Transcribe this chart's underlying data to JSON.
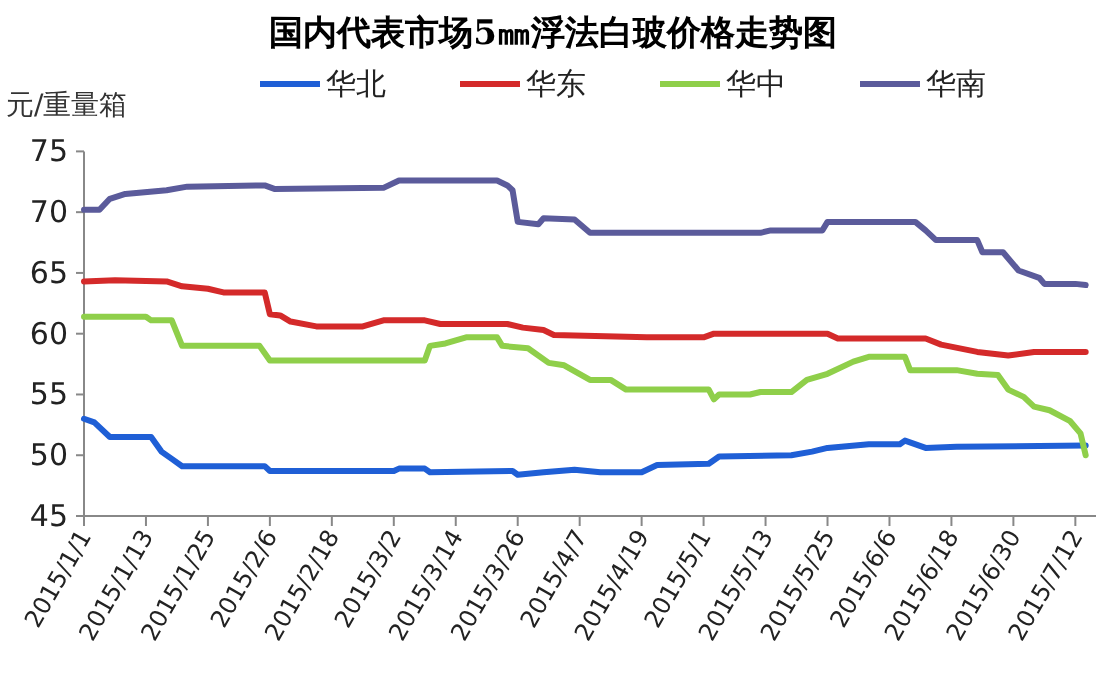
{
  "chart_data": {
    "type": "line",
    "title": "国内代表市场5㎜浮法白玻价格走势图",
    "ylabel": "元/重量箱",
    "legend": "top",
    "grid": false,
    "xlim": [
      "2015-01-01",
      "2015-07-16"
    ],
    "xticks": [
      {
        "value": "2015-01-01",
        "label": "2015/1/1"
      },
      {
        "value": "2015-01-13",
        "label": "2015/1/13"
      },
      {
        "value": "2015-01-25",
        "label": "2015/1/25"
      },
      {
        "value": "2015-02-06",
        "label": "2015/2/6"
      },
      {
        "value": "2015-02-18",
        "label": "2015/2/18"
      },
      {
        "value": "2015-03-02",
        "label": "2015/3/2"
      },
      {
        "value": "2015-03-14",
        "label": "2015/3/14"
      },
      {
        "value": "2015-03-26",
        "label": "2015/3/26"
      },
      {
        "value": "2015-04-07",
        "label": "2015/4/7"
      },
      {
        "value": "2015-04-19",
        "label": "2015/4/19"
      },
      {
        "value": "2015-05-01",
        "label": "2015/5/1"
      },
      {
        "value": "2015-05-13",
        "label": "2015/5/13"
      },
      {
        "value": "2015-05-25",
        "label": "2015/5/25"
      },
      {
        "value": "2015-06-06",
        "label": "2015/6/6"
      },
      {
        "value": "2015-06-18",
        "label": "2015/6/18"
      },
      {
        "value": "2015-06-30",
        "label": "2015/6/30"
      },
      {
        "value": "2015-07-12",
        "label": "2015/7/12"
      }
    ],
    "ylim": [
      45,
      75
    ],
    "yticks": [
      45,
      50,
      55,
      60,
      65,
      70,
      75
    ],
    "series": [
      {
        "name": "华北",
        "color": "#1f5fd6",
        "x": [
          "2015-01-01",
          "2015-01-03",
          "2015-01-06",
          "2015-01-14",
          "2015-01-16",
          "2015-01-18",
          "2015-01-20",
          "2015-02-05",
          "2015-02-06",
          "2015-03-02",
          "2015-03-03",
          "2015-03-08",
          "2015-03-09",
          "2015-03-25",
          "2015-03-26",
          "2015-03-31",
          "2015-04-06",
          "2015-04-11",
          "2015-04-19",
          "2015-04-22",
          "2015-05-02",
          "2015-05-04",
          "2015-05-18",
          "2015-05-22",
          "2015-05-25",
          "2015-06-02",
          "2015-06-08",
          "2015-06-09",
          "2015-06-13",
          "2015-06-19",
          "2015-07-14"
        ],
        "values": [
          53.0,
          52.7,
          51.5,
          51.5,
          50.3,
          49.7,
          49.1,
          49.1,
          48.7,
          48.7,
          48.9,
          48.9,
          48.6,
          48.7,
          48.4,
          48.6,
          48.8,
          48.6,
          48.6,
          49.2,
          49.3,
          49.9,
          50.0,
          50.3,
          50.6,
          50.9,
          50.9,
          51.2,
          50.6,
          50.7,
          50.8
        ]
      },
      {
        "name": "华东",
        "color": "#d42a2a",
        "x": [
          "2015-01-01",
          "2015-01-07",
          "2015-01-17",
          "2015-01-20",
          "2015-01-25",
          "2015-01-28",
          "2015-02-05",
          "2015-02-06",
          "2015-02-08",
          "2015-02-10",
          "2015-02-15",
          "2015-02-24",
          "2015-02-28",
          "2015-03-08",
          "2015-03-11",
          "2015-03-24",
          "2015-03-27",
          "2015-03-31",
          "2015-04-02",
          "2015-04-20",
          "2015-05-01",
          "2015-05-03",
          "2015-05-25",
          "2015-05-27",
          "2015-06-13",
          "2015-06-16",
          "2015-06-23",
          "2015-06-29",
          "2015-07-04",
          "2015-07-14"
        ],
        "values": [
          64.3,
          64.4,
          64.3,
          63.9,
          63.7,
          63.4,
          63.4,
          61.6,
          61.5,
          61.0,
          60.6,
          60.6,
          61.1,
          61.1,
          60.8,
          60.8,
          60.5,
          60.3,
          59.9,
          59.7,
          59.7,
          60.0,
          60.0,
          59.6,
          59.6,
          59.1,
          58.5,
          58.2,
          58.5,
          58.5
        ]
      },
      {
        "name": "华中",
        "color": "#8fcf4a",
        "x": [
          "2015-01-01",
          "2015-01-13",
          "2015-01-14",
          "2015-01-18",
          "2015-01-20",
          "2015-02-04",
          "2015-02-06",
          "2015-03-08",
          "2015-03-09",
          "2015-03-12",
          "2015-03-16",
          "2015-03-22",
          "2015-03-23",
          "2015-03-28",
          "2015-04-01",
          "2015-04-04",
          "2015-04-09",
          "2015-04-13",
          "2015-04-16",
          "2015-05-02",
          "2015-05-03",
          "2015-05-04",
          "2015-05-10",
          "2015-05-12",
          "2015-05-18",
          "2015-05-21",
          "2015-05-25",
          "2015-05-30",
          "2015-06-02",
          "2015-06-09",
          "2015-06-10",
          "2015-06-19",
          "2015-06-23",
          "2015-06-27",
          "2015-06-29",
          "2015-07-02",
          "2015-07-04",
          "2015-07-07",
          "2015-07-11",
          "2015-07-13",
          "2015-07-14"
        ],
        "values": [
          61.4,
          61.4,
          61.1,
          61.1,
          59.0,
          59.0,
          57.8,
          57.8,
          59.0,
          59.2,
          59.7,
          59.7,
          59.0,
          58.8,
          57.6,
          57.4,
          56.2,
          56.2,
          55.4,
          55.4,
          54.6,
          55.0,
          55.0,
          55.2,
          55.2,
          56.2,
          56.7,
          57.7,
          58.1,
          58.1,
          57.0,
          57.0,
          56.7,
          56.6,
          55.4,
          54.8,
          54.0,
          53.7,
          52.8,
          51.8,
          50.0
        ]
      },
      {
        "name": "华南",
        "color": "#5b5b9b",
        "x": [
          "2015-01-01",
          "2015-01-04",
          "2015-01-06",
          "2015-01-09",
          "2015-01-17",
          "2015-01-21",
          "2015-02-05",
          "2015-02-07",
          "2015-02-28",
          "2015-03-03",
          "2015-03-22",
          "2015-03-24",
          "2015-03-25",
          "2015-03-26",
          "2015-03-30",
          "2015-03-31",
          "2015-04-06",
          "2015-04-09",
          "2015-05-12",
          "2015-05-14",
          "2015-05-24",
          "2015-05-25",
          "2015-06-11",
          "2015-06-13",
          "2015-06-15",
          "2015-06-23",
          "2015-06-24",
          "2015-06-28",
          "2015-07-01",
          "2015-07-05",
          "2015-07-06",
          "2015-07-12",
          "2015-07-14"
        ],
        "values": [
          70.2,
          70.2,
          71.1,
          71.5,
          71.8,
          72.1,
          72.2,
          71.9,
          72.0,
          72.6,
          72.6,
          72.2,
          71.8,
          69.2,
          69.0,
          69.5,
          69.4,
          68.3,
          68.3,
          68.5,
          68.5,
          69.2,
          69.2,
          68.5,
          67.7,
          67.7,
          66.7,
          66.7,
          65.2,
          64.6,
          64.1,
          64.1,
          64.0
        ]
      }
    ]
  }
}
